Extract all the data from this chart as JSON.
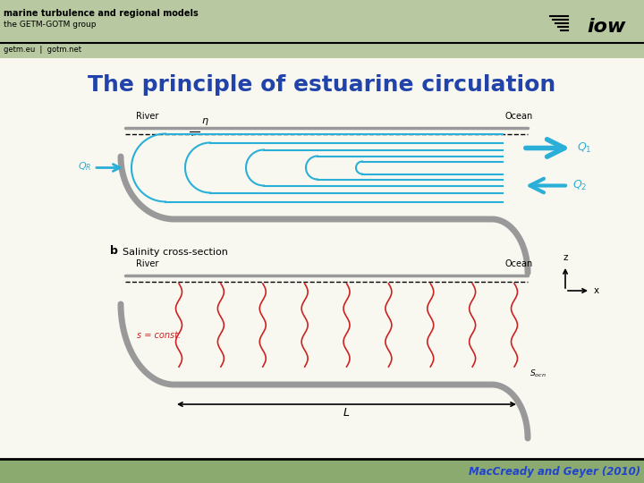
{
  "title": "The principle of estuarine circulation",
  "title_color": "#2244aa",
  "title_fontsize": 18,
  "header_bg_color": "#b8c8a0",
  "header_text1": "marine turbulence and regional models",
  "header_text2": "the GETM-GOTM group",
  "header_text3": "getm.eu  |  gotm.net",
  "footer_bg_color": "#8aaa70",
  "footer_text": "MacCready and Geyer (2010)",
  "footer_text_color": "#2244cc",
  "bg_color": "#f8f8f0",
  "cyan_color": "#2ab0d8",
  "gray_color": "#999999",
  "red_color": "#cc2222",
  "black": "#000000"
}
